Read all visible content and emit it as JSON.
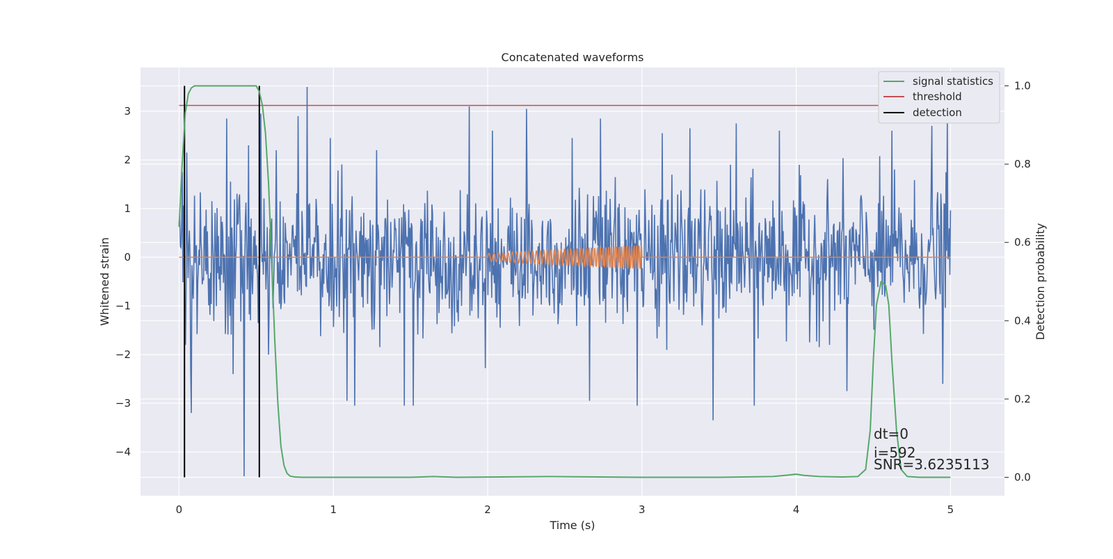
{
  "chart_data": {
    "type": "line",
    "title": "Concatenated waveforms",
    "xlabel": "Time (s)",
    "ylabel": "Whitened strain",
    "y2label": "Detection probability",
    "xlim": [
      -0.25,
      5.35
    ],
    "ylim": [
      -4.9,
      3.9
    ],
    "y2lim": [
      -0.047,
      1.047
    ],
    "x_ticks": [
      0,
      1,
      2,
      3,
      4,
      5
    ],
    "y_ticks": [
      -4,
      -3,
      -2,
      -1,
      0,
      1,
      2,
      3
    ],
    "y2_ticks": [
      0.0,
      0.2,
      0.4,
      0.6,
      0.8,
      1.0
    ],
    "grid": true,
    "background": "#EAEAF2",
    "legend_position": "upper right",
    "series": [
      {
        "name": "",
        "axis": "left",
        "color": "#4C72B0",
        "description_x_range": [
          0,
          5
        ],
        "sample_count": 1200,
        "std": 0.7,
        "spikes": [
          {
            "x": 0.02,
            "y": 1.75
          },
          {
            "x": 0.04,
            "y": -1.8
          },
          {
            "x": 0.05,
            "y": 2.15
          },
          {
            "x": 0.08,
            "y": -3.2
          },
          {
            "x": 0.31,
            "y": 2.85
          },
          {
            "x": 0.35,
            "y": -2.4
          },
          {
            "x": 0.42,
            "y": -4.5
          },
          {
            "x": 0.45,
            "y": 2.3
          },
          {
            "x": 0.53,
            "y": 2.95
          },
          {
            "x": 0.58,
            "y": -2.0
          },
          {
            "x": 0.63,
            "y": 2.2
          },
          {
            "x": 0.77,
            "y": 2.9
          },
          {
            "x": 0.83,
            "y": 3.5
          },
          {
            "x": 0.98,
            "y": 2.45
          },
          {
            "x": 1.09,
            "y": -2.95
          },
          {
            "x": 1.14,
            "y": -3.05
          },
          {
            "x": 1.28,
            "y": 2.2
          },
          {
            "x": 1.46,
            "y": -3.05
          },
          {
            "x": 1.52,
            "y": -3.05
          },
          {
            "x": 1.88,
            "y": 3.1
          },
          {
            "x": 2.03,
            "y": 2.6
          },
          {
            "x": 2.25,
            "y": 3.05
          },
          {
            "x": 2.55,
            "y": 2.45
          },
          {
            "x": 2.66,
            "y": -2.95
          },
          {
            "x": 2.73,
            "y": 2.85
          },
          {
            "x": 2.97,
            "y": -3.05
          },
          {
            "x": 3.13,
            "y": 2.55
          },
          {
            "x": 3.31,
            "y": 2.65
          },
          {
            "x": 3.46,
            "y": -3.35
          },
          {
            "x": 3.61,
            "y": 2.75
          },
          {
            "x": 3.73,
            "y": -3.05
          },
          {
            "x": 3.89,
            "y": 2.6
          },
          {
            "x": 4.33,
            "y": 3.3
          },
          {
            "x": 4.33,
            "y": -2.75
          },
          {
            "x": 4.62,
            "y": 2.6
          },
          {
            "x": 4.88,
            "y": 2.7
          },
          {
            "x": 4.95,
            "y": -2.6
          },
          {
            "x": 4.98,
            "y": 2.85
          }
        ]
      },
      {
        "name": "",
        "axis": "left",
        "color": "#DD8452",
        "chirp": {
          "x_start": 2.0,
          "x_end": 3.0,
          "amp_start": 0.08,
          "amp_end": 0.24,
          "freq_start_hz": 30,
          "freq_end_hz": 65
        },
        "x_range": [
          0,
          5
        ],
        "baseline": 0
      },
      {
        "name": "signal statistics",
        "axis": "right",
        "color": "#55A868",
        "x": [
          0.0,
          0.02,
          0.04,
          0.06,
          0.08,
          0.1,
          0.15,
          0.2,
          0.3,
          0.4,
          0.48,
          0.5,
          0.52,
          0.54,
          0.56,
          0.58,
          0.6,
          0.62,
          0.64,
          0.66,
          0.68,
          0.7,
          0.72,
          0.75,
          0.8,
          1.0,
          1.5,
          1.65,
          1.8,
          2.4,
          3.0,
          3.5,
          3.85,
          3.95,
          4.0,
          4.05,
          4.15,
          4.3,
          4.4,
          4.45,
          4.48,
          4.5,
          4.52,
          4.55,
          4.58,
          4.6,
          4.62,
          4.65,
          4.68,
          4.72,
          4.8,
          5.0
        ],
        "y": [
          0.64,
          0.8,
          0.93,
          0.98,
          0.995,
          1.0,
          1.0,
          1.0,
          1.0,
          1.0,
          1.0,
          1.0,
          0.985,
          0.95,
          0.88,
          0.75,
          0.55,
          0.35,
          0.19,
          0.08,
          0.03,
          0.01,
          0.003,
          0.001,
          0.0,
          0.0,
          0.0,
          0.002,
          0.0,
          0.002,
          0.0,
          0.0,
          0.002,
          0.006,
          0.008,
          0.005,
          0.002,
          0.001,
          0.002,
          0.02,
          0.12,
          0.3,
          0.44,
          0.5,
          0.49,
          0.44,
          0.3,
          0.12,
          0.02,
          0.002,
          0.0,
          0.0
        ]
      },
      {
        "name": "threshold",
        "axis": "right",
        "color": "#C44E52",
        "x": [
          0.0,
          5.0
        ],
        "y": [
          0.95,
          0.95
        ]
      },
      {
        "name": "detection",
        "axis": "right",
        "color": "#000000",
        "vertical_lines_x": [
          0.035,
          0.52
        ],
        "y_range": [
          0.0,
          1.0
        ]
      }
    ],
    "annotations": [
      "dt=0",
      "i=592",
      "SNR=3.6235113"
    ]
  }
}
